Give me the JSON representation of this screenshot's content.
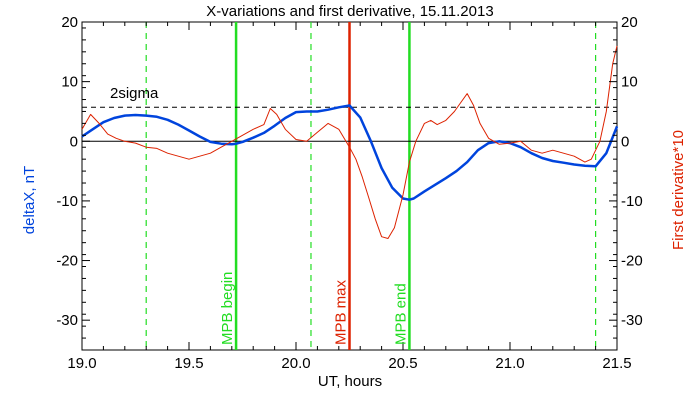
{
  "chart_data": {
    "type": "line",
    "title": "X-variations and first derivative, 15.11.2013",
    "xlabel": "UT, hours",
    "ylabel_left": "deltaX, nT",
    "ylabel_right": "First derivative*10",
    "xlim": [
      19.0,
      21.5
    ],
    "ylim": [
      -35,
      20
    ],
    "x_ticks": [
      "19.0",
      "19.5",
      "20.0",
      "20.5",
      "21.0",
      "21.5"
    ],
    "y_ticks": [
      "-30",
      "-20",
      "-10",
      "0",
      "10",
      "20"
    ],
    "grid": false,
    "colors": {
      "deltaX": "#0044dd",
      "derivative": "#dd2200",
      "mpb_green": "#22dd22",
      "mpb_red": "#dd2200"
    },
    "threshold": {
      "label": "2sigma",
      "value": 5.7
    },
    "series": [
      {
        "key": "deltaX",
        "name": "deltaX, nT",
        "x": [
          19.0,
          19.05,
          19.1,
          19.15,
          19.2,
          19.25,
          19.3,
          19.35,
          19.4,
          19.45,
          19.5,
          19.55,
          19.6,
          19.65,
          19.7,
          19.72,
          19.75,
          19.8,
          19.85,
          19.9,
          19.95,
          20.0,
          20.05,
          20.1,
          20.15,
          20.2,
          20.25,
          20.3,
          20.35,
          20.4,
          20.45,
          20.5,
          20.53,
          20.55,
          20.6,
          20.65,
          20.7,
          20.75,
          20.8,
          20.85,
          20.9,
          20.95,
          21.0,
          21.05,
          21.1,
          21.15,
          21.2,
          21.25,
          21.3,
          21.35,
          21.4,
          21.45,
          21.5
        ],
        "y": [
          0.8,
          2.0,
          3.2,
          3.9,
          4.3,
          4.4,
          4.3,
          4.1,
          3.6,
          2.8,
          1.8,
          0.8,
          -0.1,
          -0.4,
          -0.5,
          -0.4,
          -0.1,
          0.6,
          1.4,
          2.6,
          3.9,
          4.9,
          5.0,
          5.0,
          5.3,
          5.7,
          6.0,
          4.0,
          0.0,
          -4.5,
          -7.8,
          -9.6,
          -9.8,
          -9.6,
          -8.4,
          -7.3,
          -6.2,
          -5.0,
          -3.5,
          -1.5,
          -0.3,
          0.0,
          -0.3,
          -1.0,
          -2.0,
          -2.8,
          -3.3,
          -3.6,
          -3.9,
          -4.1,
          -4.2,
          -2.0,
          2.5
        ]
      },
      {
        "key": "derivative",
        "name": "First derivative*10",
        "x": [
          19.0,
          19.04,
          19.08,
          19.12,
          19.16,
          19.2,
          19.25,
          19.3,
          19.35,
          19.4,
          19.45,
          19.5,
          19.55,
          19.6,
          19.65,
          19.7,
          19.75,
          19.8,
          19.85,
          19.88,
          19.91,
          19.95,
          20.0,
          20.05,
          20.1,
          20.15,
          20.2,
          20.25,
          20.28,
          20.31,
          20.34,
          20.37,
          20.4,
          20.43,
          20.46,
          20.5,
          20.53,
          20.56,
          20.6,
          20.63,
          20.66,
          20.7,
          20.74,
          20.77,
          20.8,
          20.83,
          20.86,
          20.9,
          20.95,
          21.0,
          21.05,
          21.1,
          21.15,
          21.2,
          21.25,
          21.3,
          21.35,
          21.38,
          21.42,
          21.45,
          21.48,
          21.5
        ],
        "y": [
          2.0,
          4.5,
          3.0,
          1.2,
          0.5,
          0.0,
          -0.3,
          -1.0,
          -1.2,
          -2.0,
          -2.5,
          -3.0,
          -2.5,
          -2.0,
          -1.0,
          0.0,
          1.0,
          2.0,
          2.8,
          5.5,
          4.5,
          2.0,
          0.3,
          0.0,
          1.5,
          3.0,
          2.0,
          -1.0,
          -3.0,
          -6.0,
          -9.5,
          -13.0,
          -16.0,
          -16.3,
          -14.5,
          -9.0,
          -3.5,
          0.0,
          3.0,
          3.5,
          2.8,
          3.5,
          5.0,
          6.5,
          8.0,
          6.0,
          3.0,
          0.5,
          -0.5,
          -0.3,
          0.0,
          -1.5,
          -2.0,
          -1.5,
          -2.0,
          -2.5,
          -3.5,
          -3.0,
          0.0,
          5.0,
          13.0,
          16.0
        ]
      }
    ],
    "dashed_lines": [
      {
        "x": 19.3,
        "color": "#22dd22"
      },
      {
        "x": 20.07,
        "color": "#22dd22"
      },
      {
        "x": 21.4,
        "color": "#22dd22"
      }
    ],
    "markers": [
      {
        "x": 19.72,
        "label": "MPB begin",
        "color": "#22dd22"
      },
      {
        "x": 20.25,
        "label": "MPB max",
        "color": "#dd2200"
      },
      {
        "x": 20.53,
        "label": "MPB end",
        "color": "#22dd22"
      }
    ]
  }
}
